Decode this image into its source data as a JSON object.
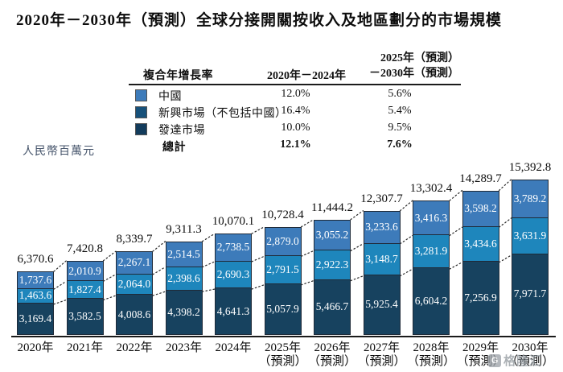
{
  "title": "2020年－2030年（預測）全球分接開關按收入及地區劃分的市場規模",
  "unit_label": "人民幣百萬元",
  "legend": {
    "header": {
      "col1": "複合年增長率",
      "col2": "2020年－2024年",
      "col3_line1": "2025年（預測）",
      "col3_line2": "－2030年（預測）"
    },
    "rows": [
      {
        "label": "中國",
        "cagr_2020_2024": "12.0%",
        "cagr_2025_2030": "5.6%",
        "swatch_color": "#3d7bba"
      },
      {
        "label": "新興市場（不包括中國）",
        "cagr_2020_2024": "16.4%",
        "cagr_2025_2030": "5.4%",
        "swatch_color": "#17517a"
      },
      {
        "label": "發達市場",
        "cagr_2020_2024": "10.0%",
        "cagr_2025_2030": "9.5%",
        "swatch_color": "#133c5c"
      }
    ],
    "total_row": {
      "label": "總計",
      "cagr_2020_2024": "12.1%",
      "cagr_2025_2030": "7.6%"
    }
  },
  "watermark": {
    "logo": "gelonghui-logo",
    "text": "格隆汇"
  },
  "chart_data": {
    "type": "bar",
    "stacked": true,
    "title": "2020年－2030年（預測）全球分接開關按收入及地區劃分的市場規模",
    "ylabel": "人民幣百萬元",
    "xlabel": "",
    "ylim": [
      0,
      16000
    ],
    "grid": false,
    "legend_position": "top",
    "categories": [
      "2020年",
      "2021年",
      "2022年",
      "2023年",
      "2024年",
      "2025年",
      "2026年",
      "2027年",
      "2028年",
      "2029年",
      "2030年"
    ],
    "forecast_note": "（預測）",
    "forecast_from_index": 5,
    "series": [
      {
        "name": "中國",
        "color": "#3d7bba",
        "values": [
          1737.6,
          2010.9,
          2267.1,
          2514.5,
          2738.5,
          2879.0,
          3055.2,
          3233.6,
          3416.3,
          3598.2,
          3789.2
        ]
      },
      {
        "name": "新興市場（不包括中國）",
        "color": "#1e86bc",
        "values": [
          1463.6,
          1827.4,
          2064.0,
          2398.6,
          2690.3,
          2791.5,
          2922.3,
          3148.7,
          3281.9,
          3434.6,
          3631.9
        ]
      },
      {
        "name": "發達市場",
        "color": "#17425f",
        "values": [
          3169.4,
          3582.5,
          4008.6,
          4398.2,
          4641.3,
          5057.9,
          5466.7,
          5925.4,
          6604.2,
          7256.9,
          7971.7
        ]
      }
    ],
    "totals": [
      6370.6,
      7420.8,
      8339.7,
      9311.3,
      10070.1,
      10728.4,
      11444.2,
      12307.7,
      13302.4,
      14289.7,
      15392.8
    ]
  }
}
